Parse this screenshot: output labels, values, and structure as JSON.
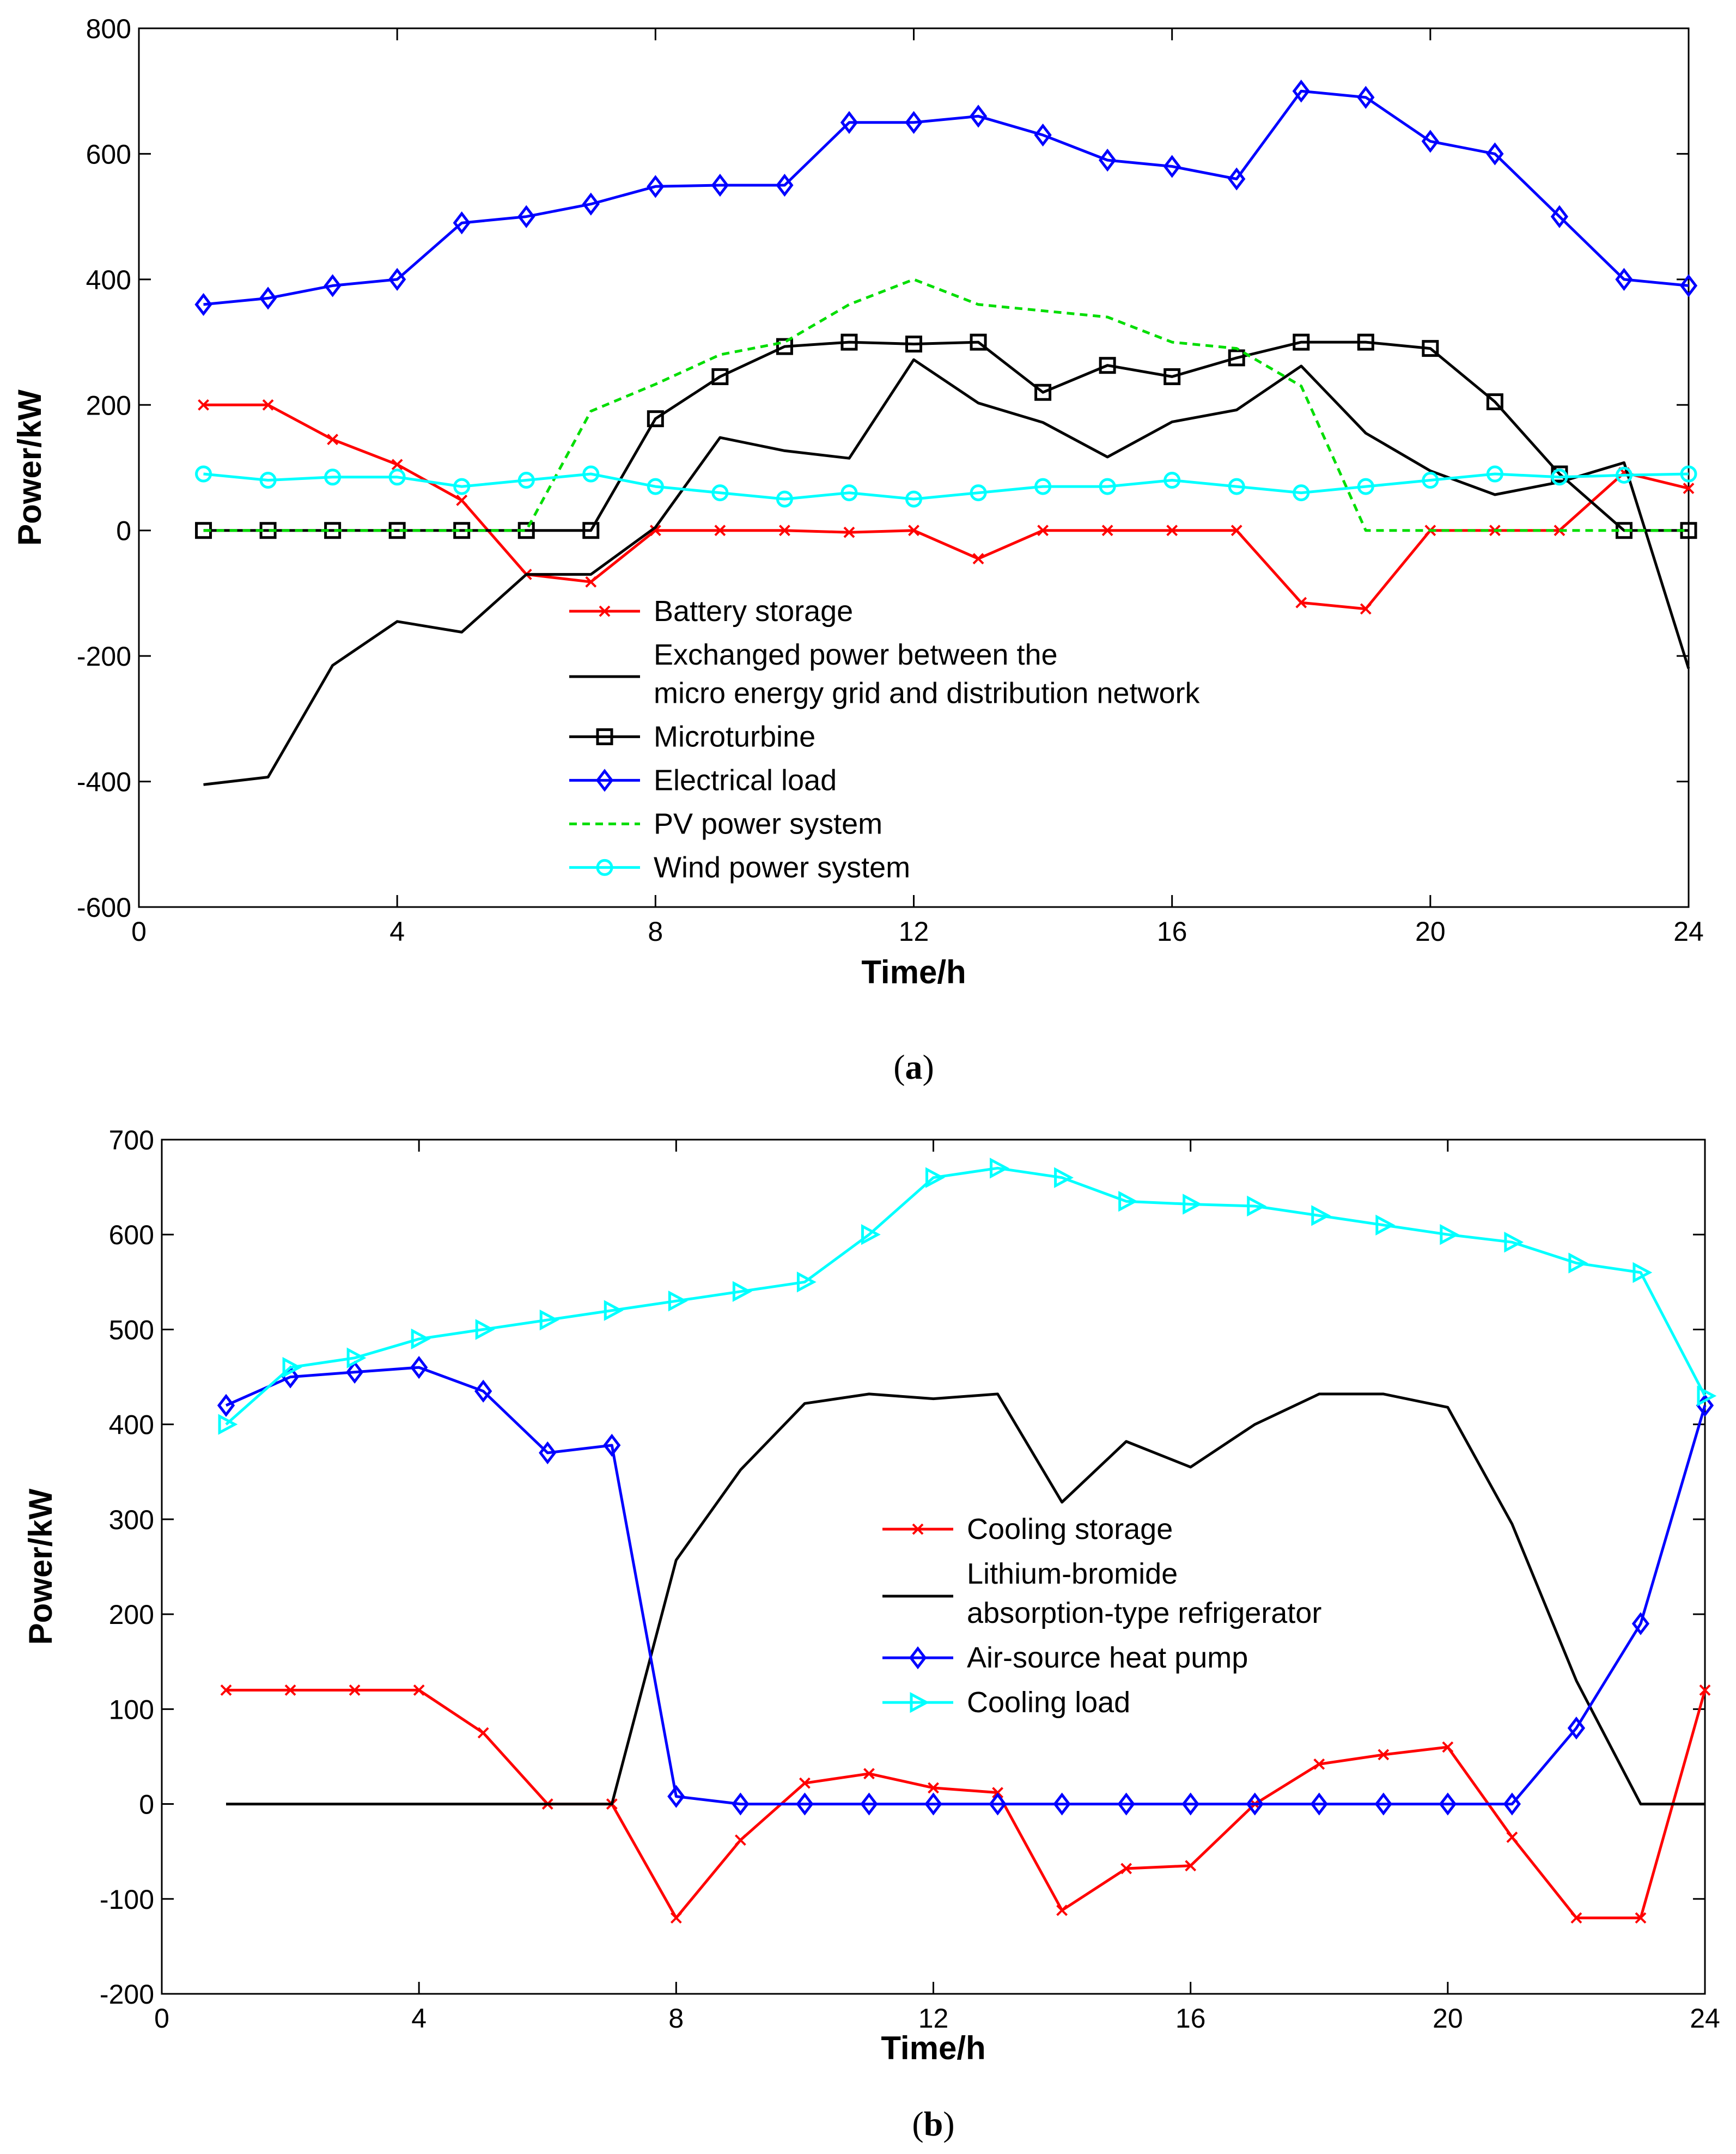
{
  "chart_data": [
    {
      "type": "line",
      "caption_open": "(",
      "caption_letter": "a",
      "caption_close": ")",
      "xlabel": "Time/h",
      "ylabel": "Power/kW",
      "xlim": [
        0,
        24
      ],
      "ylim": [
        -600,
        800
      ],
      "xticks": [
        0,
        4,
        8,
        12,
        16,
        20,
        24
      ],
      "yticks": [
        -600,
        -400,
        -200,
        0,
        200,
        400,
        600,
        800
      ],
      "legend_position": "lower-center",
      "x": [
        1,
        2,
        3,
        4,
        5,
        6,
        7,
        8,
        9,
        10,
        11,
        12,
        13,
        14,
        15,
        16,
        17,
        18,
        19,
        20,
        21,
        22,
        23,
        24
      ],
      "series": [
        {
          "name": "Battery storage",
          "color": "#ff0000",
          "marker": "x",
          "dash": "",
          "values": [
            200,
            200,
            145,
            105,
            48,
            -70,
            -82,
            0,
            0,
            0,
            -3,
            0,
            -45,
            0,
            0,
            0,
            0,
            -115,
            -125,
            0,
            0,
            0,
            92,
            67
          ]
        },
        {
          "name": "Exchanged power between the",
          "name_line2": "micro energy grid and distribution network",
          "color": "#000000",
          "marker": "none",
          "dash": "",
          "values": [
            -405,
            -393,
            -215,
            -145,
            -162,
            -70,
            -70,
            5,
            148,
            127,
            115,
            272,
            203,
            172,
            117,
            173,
            192,
            262,
            155,
            95,
            57,
            77,
            108,
            -220
          ]
        },
        {
          "name": "Microturbine",
          "color": "#000000",
          "marker": "square",
          "dash": "",
          "values": [
            0,
            0,
            0,
            0,
            0,
            0,
            0,
            178,
            245,
            293,
            300,
            297,
            300,
            220,
            263,
            245,
            275,
            300,
            300,
            290,
            205,
            90,
            0,
            0
          ]
        },
        {
          "name": "Electrical load",
          "color": "#0000ff",
          "marker": "diamond",
          "dash": "",
          "values": [
            360,
            370,
            390,
            400,
            490,
            500,
            520,
            548,
            550,
            550,
            650,
            650,
            660,
            630,
            590,
            580,
            560,
            700,
            690,
            620,
            600,
            500,
            400,
            390
          ]
        },
        {
          "name": "PV power system",
          "color": "#00dd00",
          "marker": "none",
          "dash": "14,10",
          "values": [
            0,
            0,
            0,
            0,
            0,
            0,
            190,
            233,
            280,
            300,
            360,
            400,
            360,
            350,
            340,
            300,
            290,
            230,
            0,
            0,
            0,
            0,
            0,
            0
          ]
        },
        {
          "name": "Wind power system",
          "color": "#00ffff",
          "marker": "circle",
          "dash": "",
          "values": [
            90,
            80,
            85,
            85,
            70,
            80,
            90,
            70,
            60,
            50,
            60,
            50,
            60,
            70,
            70,
            80,
            70,
            60,
            70,
            80,
            90,
            85,
            88,
            90
          ]
        }
      ]
    },
    {
      "type": "line",
      "caption_open": "(",
      "caption_letter": "b",
      "caption_close": ")",
      "xlabel": "Time/h",
      "ylabel": "Power/kW",
      "xlim": [
        0,
        24
      ],
      "ylim": [
        -200,
        700
      ],
      "xticks": [
        0,
        4,
        8,
        12,
        16,
        20,
        24
      ],
      "yticks": [
        -200,
        -100,
        0,
        100,
        200,
        300,
        400,
        500,
        600,
        700
      ],
      "legend_position": "center-right",
      "x": [
        1,
        2,
        3,
        4,
        5,
        6,
        7,
        8,
        9,
        10,
        11,
        12,
        13,
        14,
        15,
        16,
        17,
        18,
        19,
        20,
        21,
        22,
        23,
        24
      ],
      "series": [
        {
          "name": "Cooling storage",
          "color": "#ff0000",
          "marker": "x",
          "dash": "",
          "values": [
            120,
            120,
            120,
            120,
            75,
            0,
            0,
            -120,
            -38,
            22,
            32,
            17,
            12,
            -112,
            -68,
            -65,
            0,
            42,
            52,
            60,
            -35,
            -120,
            -120,
            120
          ]
        },
        {
          "name": "Lithium-bromide",
          "name_line2": "absorption-type refrigerator",
          "color": "#000000",
          "marker": "none",
          "dash": "",
          "values": [
            0,
            0,
            0,
            0,
            0,
            0,
            0,
            257,
            352,
            422,
            432,
            427,
            432,
            318,
            382,
            355,
            400,
            432,
            432,
            418,
            295,
            130,
            0,
            0
          ]
        },
        {
          "name": "Air-source heat pump",
          "color": "#0000ff",
          "marker": "diamond",
          "dash": "",
          "values": [
            420,
            450,
            455,
            460,
            435,
            370,
            378,
            8,
            0,
            0,
            0,
            0,
            0,
            0,
            0,
            0,
            0,
            0,
            0,
            0,
            0,
            80,
            190,
            420
          ]
        },
        {
          "name": "Cooling load",
          "color": "#00ffff",
          "marker": "triangle-right",
          "dash": "",
          "values": [
            400,
            460,
            470,
            490,
            500,
            510,
            520,
            530,
            540,
            550,
            600,
            660,
            670,
            660,
            635,
            632,
            630,
            620,
            610,
            600,
            592,
            570,
            560,
            430
          ]
        }
      ]
    }
  ]
}
